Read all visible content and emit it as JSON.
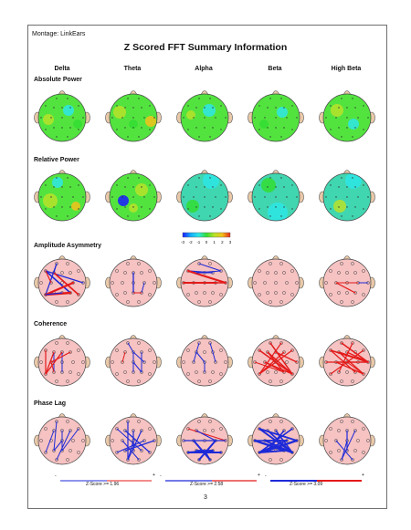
{
  "montage": "Montage:  LinkEars",
  "title": "Z Scored FFT Summary Information",
  "bands": [
    "Delta",
    "Theta",
    "Alpha",
    "Beta",
    "High Beta"
  ],
  "sections": [
    "Absolute Power",
    "Relative Power",
    "Amplitude Asymmetry",
    "Coherence",
    "Phase Lag"
  ],
  "colorbar": {
    "ticks": [
      "-3",
      "-2",
      "-1",
      "0",
      "1",
      "2",
      "3"
    ],
    "colors": [
      "#1a1aff",
      "#14aaff",
      "#2ee6e6",
      "#33dd33",
      "#b8e22a",
      "#f3c21a",
      "#e8281c"
    ]
  },
  "zscore_legends": [
    {
      "label": "Z-Score >= 1.96",
      "minus": "-",
      "plus": "+"
    },
    {
      "label": "Z-Score >= 2.58",
      "minus": "-",
      "plus": "+"
    },
    {
      "label": "Z-Score >= 3.09",
      "minus": "-",
      "plus": "+"
    }
  ],
  "page_number": "3",
  "colors": {
    "head_pink": "#f6c2c2",
    "head_green": "#53e33f",
    "ear": "#e9c9a9",
    "positive": "#e41a1a",
    "negative": "#1e2ad8"
  }
}
